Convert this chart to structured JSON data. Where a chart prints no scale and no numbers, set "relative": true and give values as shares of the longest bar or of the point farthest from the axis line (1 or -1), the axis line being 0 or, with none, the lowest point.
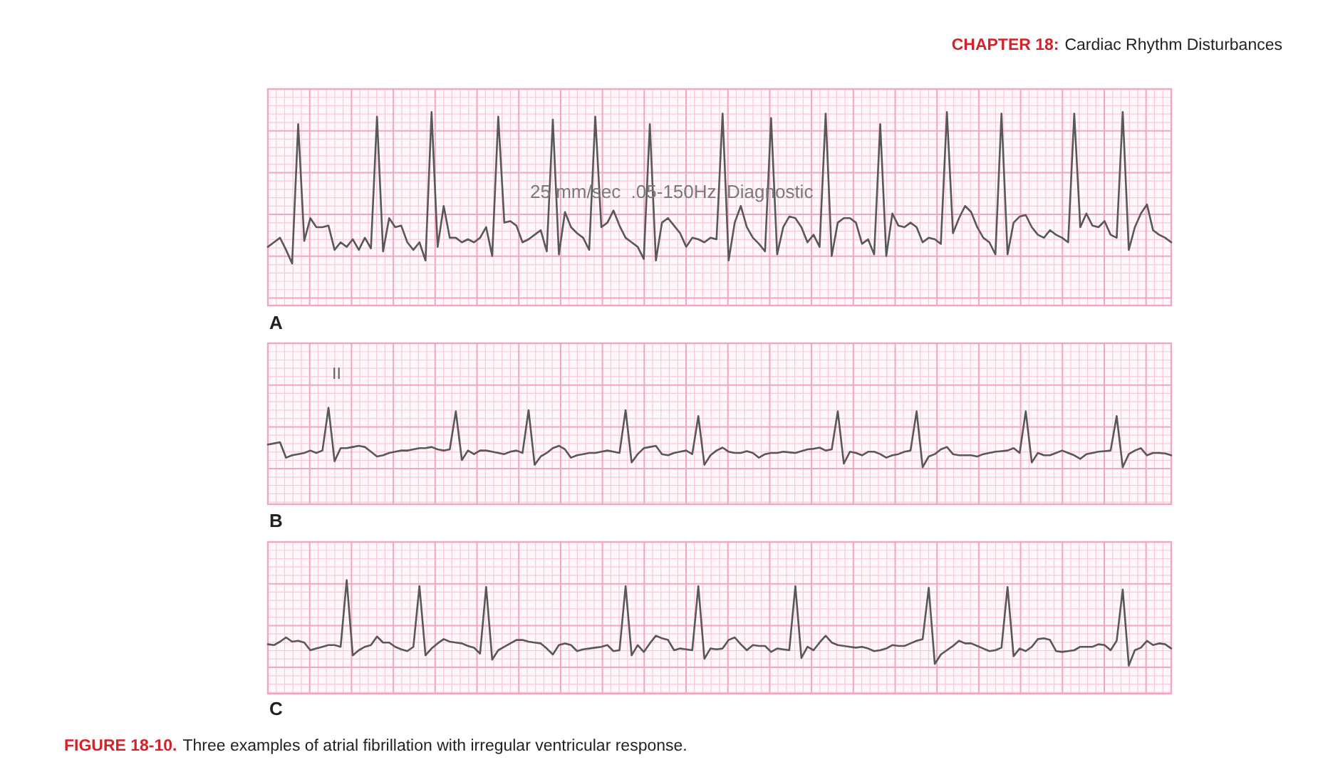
{
  "chart_data": [
    {
      "type": "line",
      "title": "A",
      "relative": true,
      "grid": true,
      "color": "#585858",
      "annotations": [
        "25 mm/sec  .05-150Hz  Diagnostic",
        "CHAPTER 18:",
        "Cardiac Rhythm Disturbances"
      ],
      "categories": [
        null,
        null,
        null,
        null,
        null,
        null,
        null,
        null,
        null,
        null,
        null,
        null,
        null,
        null,
        null,
        null,
        null,
        null,
        null,
        null,
        null,
        null,
        null,
        null,
        null,
        null,
        null,
        null,
        null,
        null,
        null,
        null,
        null,
        null,
        null,
        null,
        null,
        null,
        null,
        null,
        null,
        null,
        null,
        null,
        null,
        null,
        null,
        null,
        null,
        null,
        null,
        null,
        null,
        null,
        null,
        null,
        null,
        null,
        null,
        null,
        null,
        null,
        null,
        null,
        null,
        null,
        null,
        null,
        null,
        null,
        null,
        null,
        null,
        null,
        null,
        null,
        null,
        null,
        null,
        null,
        null,
        null,
        null,
        null,
        null,
        null,
        null,
        null,
        null,
        null,
        null,
        null,
        null,
        null,
        null,
        null,
        null,
        null,
        null,
        null,
        null,
        null,
        null,
        null,
        null,
        null,
        null,
        null,
        null,
        null,
        null,
        null,
        null,
        null,
        null,
        null,
        null,
        null,
        null,
        null,
        null,
        null,
        null,
        null,
        null,
        null,
        null,
        null,
        null,
        null,
        null,
        null,
        null,
        null,
        null,
        null,
        null,
        null,
        null,
        null,
        null,
        null,
        null,
        null,
        null,
        null,
        null,
        null,
        null,
        null
      ],
      "values": [
        0.11,
        0.14,
        0.17,
        0.09,
        0.0,
        0.92,
        0.15,
        0.3,
        0.24,
        0.24,
        0.25,
        0.09,
        0.14,
        0.11,
        0.16,
        0.09,
        0.17,
        0.1,
        0.97,
        0.08,
        0.3,
        0.24,
        0.25,
        0.14,
        0.09,
        0.14,
        0.02,
        1.0,
        0.11,
        0.38,
        0.17,
        0.17,
        0.14,
        0.16,
        0.14,
        0.17,
        0.24,
        0.05,
        0.97,
        0.27,
        0.28,
        0.25,
        0.14,
        0.16,
        0.19,
        0.22,
        0.08,
        0.95,
        0.06,
        0.34,
        0.24,
        0.2,
        0.17,
        0.09,
        0.97,
        0.24,
        0.27,
        0.35,
        0.25,
        0.17,
        0.14,
        0.11,
        0.03,
        0.92,
        0.02,
        0.27,
        0.3,
        0.25,
        0.2,
        0.11,
        0.17,
        0.16,
        0.14,
        0.17,
        0.16,
        0.99,
        0.02,
        0.27,
        0.38,
        0.24,
        0.17,
        0.13,
        0.08,
        0.96,
        0.06,
        0.24,
        0.31,
        0.3,
        0.24,
        0.14,
        0.19,
        0.11,
        0.99,
        0.05,
        0.27,
        0.3,
        0.3,
        0.27,
        0.13,
        0.16,
        0.06,
        0.92,
        0.05,
        0.33,
        0.25,
        0.24,
        0.27,
        0.24,
        0.14,
        0.17,
        0.16,
        0.13,
        1.0,
        0.2,
        0.3,
        0.38,
        0.34,
        0.24,
        0.17,
        0.14,
        0.06,
        0.99,
        0.06,
        0.27,
        0.31,
        0.32,
        0.24,
        0.19,
        0.17,
        0.22,
        0.19,
        0.17,
        0.14,
        0.99,
        0.24,
        0.33,
        0.25,
        0.24,
        0.28,
        0.19,
        0.17,
        1.0,
        0.09,
        0.24,
        0.33,
        0.39,
        0.22,
        0.19,
        0.17,
        0.14
      ]
    },
    {
      "type": "line",
      "title": "B",
      "relative": true,
      "grid": true,
      "color": "#585858",
      "annotations": [
        "II"
      ],
      "categories": [
        null,
        null,
        null,
        null,
        null,
        null,
        null,
        null,
        null,
        null,
        null,
        null,
        null,
        null,
        null,
        null,
        null,
        null,
        null,
        null,
        null,
        null,
        null,
        null,
        null,
        null,
        null,
        null,
        null,
        null,
        null,
        null,
        null,
        null,
        null,
        null,
        null,
        null,
        null,
        null,
        null,
        null,
        null,
        null,
        null,
        null,
        null,
        null,
        null,
        null,
        null,
        null,
        null,
        null,
        null,
        null,
        null,
        null,
        null,
        null,
        null,
        null,
        null,
        null,
        null,
        null,
        null,
        null,
        null,
        null,
        null,
        null,
        null,
        null,
        null,
        null,
        null,
        null,
        null,
        null,
        null,
        null,
        null,
        null,
        null,
        null,
        null,
        null,
        null,
        null,
        null,
        null,
        null,
        null,
        null,
        null,
        null,
        null,
        null,
        null,
        null,
        null,
        null,
        null,
        null,
        null,
        null,
        null,
        null,
        null,
        null,
        null,
        null,
        null,
        null,
        null,
        null,
        null,
        null,
        null,
        null,
        null,
        null,
        null,
        null,
        null,
        null,
        null,
        null,
        null,
        null,
        null,
        null,
        null,
        null,
        null,
        null,
        null,
        null,
        null,
        null,
        null,
        null,
        null,
        null,
        null,
        null,
        null,
        null,
        null
      ],
      "values": [
        0.38,
        0.4,
        0.42,
        0.16,
        0.2,
        0.22,
        0.24,
        0.28,
        0.24,
        0.28,
        1.0,
        0.1,
        0.32,
        0.32,
        0.34,
        0.36,
        0.34,
        0.26,
        0.18,
        0.2,
        0.24,
        0.26,
        0.28,
        0.28,
        0.3,
        0.32,
        0.32,
        0.34,
        0.3,
        0.28,
        0.3,
        0.94,
        0.12,
        0.28,
        0.22,
        0.28,
        0.28,
        0.26,
        0.24,
        0.22,
        0.26,
        0.28,
        0.24,
        0.96,
        0.04,
        0.18,
        0.24,
        0.32,
        0.36,
        0.3,
        0.16,
        0.2,
        0.22,
        0.24,
        0.24,
        0.26,
        0.28,
        0.26,
        0.24,
        0.96,
        0.08,
        0.22,
        0.32,
        0.34,
        0.36,
        0.22,
        0.2,
        0.24,
        0.26,
        0.28,
        0.22,
        0.86,
        0.04,
        0.2,
        0.28,
        0.33,
        0.26,
        0.24,
        0.24,
        0.27,
        0.24,
        0.16,
        0.22,
        0.24,
        0.24,
        0.26,
        0.25,
        0.24,
        0.27,
        0.3,
        0.31,
        0.33,
        0.28,
        0.3,
        0.94,
        0.06,
        0.26,
        0.24,
        0.2,
        0.26,
        0.26,
        0.22,
        0.16,
        0.2,
        0.22,
        0.26,
        0.28,
        0.94,
        0.0,
        0.18,
        0.22,
        0.3,
        0.34,
        0.22,
        0.2,
        0.2,
        0.2,
        0.18,
        0.22,
        0.24,
        0.26,
        0.27,
        0.28,
        0.32,
        0.24,
        0.94,
        0.08,
        0.24,
        0.2,
        0.2,
        0.24,
        0.28,
        0.24,
        0.2,
        0.14,
        0.22,
        0.24,
        0.26,
        0.27,
        0.28,
        0.86,
        0.0,
        0.22,
        0.28,
        0.32,
        0.2,
        0.24,
        0.24,
        0.23,
        0.2
      ]
    },
    {
      "type": "line",
      "title": "C",
      "relative": true,
      "grid": true,
      "color": "#585858",
      "annotations": [
        "FIGURE 18-10.",
        "Three examples of atrial fibrillation with irregular ventricular response."
      ],
      "categories": [
        null,
        null,
        null,
        null,
        null,
        null,
        null,
        null,
        null,
        null,
        null,
        null,
        null,
        null,
        null,
        null,
        null,
        null,
        null,
        null,
        null,
        null,
        null,
        null,
        null,
        null,
        null,
        null,
        null,
        null,
        null,
        null,
        null,
        null,
        null,
        null,
        null,
        null,
        null,
        null,
        null,
        null,
        null,
        null,
        null,
        null,
        null,
        null,
        null,
        null,
        null,
        null,
        null,
        null,
        null,
        null,
        null,
        null,
        null,
        null,
        null,
        null,
        null,
        null,
        null,
        null,
        null,
        null,
        null,
        null,
        null,
        null,
        null,
        null,
        null,
        null,
        null,
        null,
        null,
        null,
        null,
        null,
        null,
        null,
        null,
        null,
        null,
        null,
        null,
        null,
        null,
        null,
        null,
        null,
        null,
        null,
        null,
        null,
        null,
        null,
        null,
        null,
        null,
        null,
        null,
        null,
        null,
        null,
        null,
        null,
        null,
        null,
        null,
        null,
        null,
        null,
        null,
        null,
        null,
        null,
        null,
        null,
        null,
        null,
        null,
        null,
        null,
        null,
        null,
        null,
        null,
        null,
        null,
        null,
        null,
        null,
        null,
        null,
        null,
        null,
        null,
        null,
        null,
        null,
        null,
        null,
        null,
        null,
        null,
        null
      ],
      "values": [
        0.25,
        0.24,
        0.28,
        0.33,
        0.28,
        0.29,
        0.27,
        0.18,
        0.2,
        0.22,
        0.24,
        0.24,
        0.22,
        1.0,
        0.12,
        0.18,
        0.22,
        0.24,
        0.34,
        0.27,
        0.27,
        0.22,
        0.19,
        0.17,
        0.22,
        0.93,
        0.12,
        0.2,
        0.26,
        0.31,
        0.28,
        0.27,
        0.26,
        0.23,
        0.21,
        0.14,
        0.92,
        0.07,
        0.18,
        0.22,
        0.26,
        0.3,
        0.3,
        0.28,
        0.27,
        0.26,
        0.2,
        0.13,
        0.24,
        0.26,
        0.24,
        0.17,
        0.19,
        0.2,
        0.21,
        0.22,
        0.24,
        0.17,
        0.18,
        0.93,
        0.12,
        0.24,
        0.16,
        0.26,
        0.35,
        0.32,
        0.3,
        0.18,
        0.2,
        0.19,
        0.18,
        0.93,
        0.08,
        0.2,
        0.19,
        0.2,
        0.3,
        0.33,
        0.25,
        0.18,
        0.24,
        0.23,
        0.23,
        0.16,
        0.2,
        0.19,
        0.18,
        0.93,
        0.09,
        0.22,
        0.18,
        0.27,
        0.35,
        0.27,
        0.24,
        0.23,
        0.22,
        0.21,
        0.22,
        0.2,
        0.17,
        0.18,
        0.2,
        0.24,
        0.23,
        0.23,
        0.26,
        0.29,
        0.31,
        0.91,
        0.02,
        0.13,
        0.18,
        0.23,
        0.29,
        0.26,
        0.26,
        0.23,
        0.2,
        0.17,
        0.18,
        0.21,
        0.92,
        0.11,
        0.2,
        0.17,
        0.22,
        0.31,
        0.32,
        0.3,
        0.17,
        0.16,
        0.17,
        0.18,
        0.22,
        0.22,
        0.22,
        0.25,
        0.24,
        0.18,
        0.29,
        0.89,
        0.0,
        0.18,
        0.21,
        0.29,
        0.24,
        0.26,
        0.25,
        0.2
      ]
    }
  ]
}
